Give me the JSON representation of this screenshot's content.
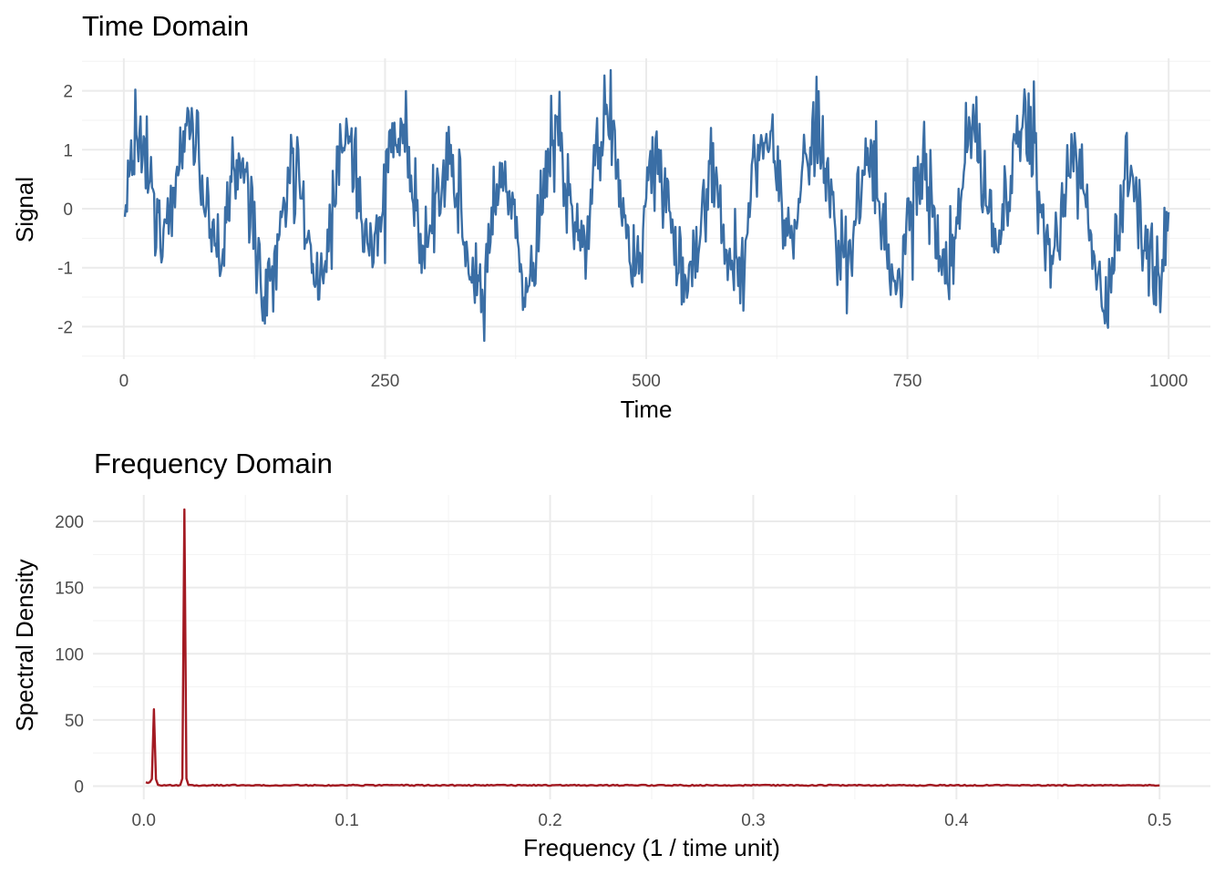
{
  "chart_data": [
    {
      "type": "line",
      "title": "Time Domain",
      "xlabel": "Time",
      "ylabel": "Signal",
      "xlim": [
        -40,
        1040
      ],
      "ylim": [
        -2.55,
        2.55
      ],
      "x_ticks": [
        0,
        250,
        500,
        750,
        1000
      ],
      "x_tick_labels": [
        "0",
        "250",
        "500",
        "750",
        "1000"
      ],
      "y_ticks": [
        -2,
        -1,
        0,
        1,
        2
      ],
      "y_tick_labels": [
        "-2",
        "-1",
        "0",
        "1",
        "2"
      ],
      "grid": true,
      "color": "#3a6ea5",
      "signal": {
        "n": 1000,
        "components": [
          {
            "amplitude": 1.0,
            "period": 50
          },
          {
            "amplitude": 0.5,
            "period": 200
          }
        ],
        "noise_sd": 0.4
      }
    },
    {
      "type": "line",
      "title": "Frequency Domain",
      "xlabel": "Frequency (1 / time unit)",
      "ylabel": "Spectral Density",
      "xlim": [
        -0.025,
        0.525
      ],
      "ylim": [
        -10,
        220
      ],
      "x_ticks": [
        0,
        0.1,
        0.2,
        0.3,
        0.4,
        0.5
      ],
      "x_tick_labels": [
        "0.0",
        "0.1",
        "0.2",
        "0.3",
        "0.4",
        "0.5"
      ],
      "y_ticks": [
        0,
        50,
        100,
        150,
        200
      ],
      "y_tick_labels": [
        "0",
        "50",
        "100",
        "150",
        "200"
      ],
      "grid": true,
      "color": "#a31a22",
      "peaks": [
        {
          "frequency": 0.005,
          "density": 58
        },
        {
          "frequency": 0.02,
          "density": 209
        }
      ]
    }
  ]
}
